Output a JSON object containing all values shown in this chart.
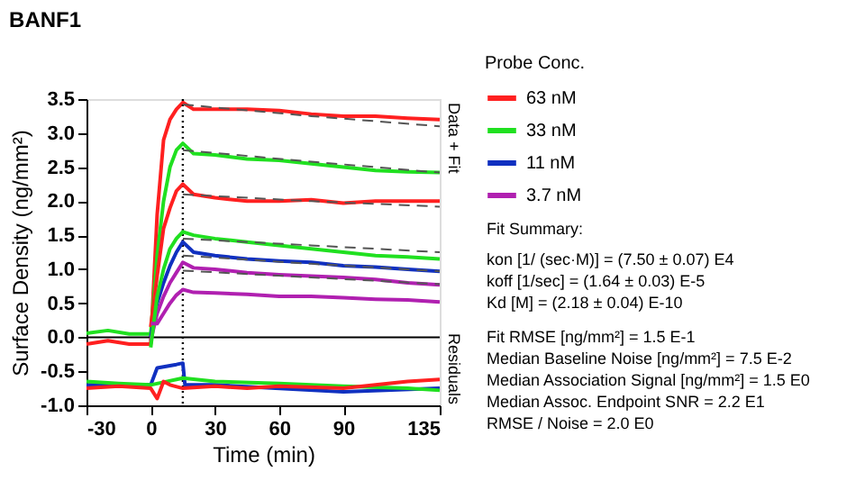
{
  "chart_data": {
    "type": "line",
    "title": "BANF1",
    "xlabel": "Time (min)",
    "ylabel": "Surface Density (ng/mm²)",
    "legend_title": "Probe Conc.",
    "legend": "right",
    "grid": false,
    "marker": "none",
    "line_style": "solid",
    "xlim": [
      -30,
      135
    ],
    "xticks": [
      -30,
      0,
      30,
      60,
      90,
      135
    ],
    "ylim": [
      -1.0,
      3.5
    ],
    "yticks": [
      {
        "value": -1,
        "label": "-1.0"
      },
      -0.5,
      {
        "value": 0,
        "label": "0.0"
      },
      0.5,
      {
        "value": 1,
        "label": "1.0"
      },
      1.5,
      {
        "value": 2,
        "label": "2.0"
      },
      2.5,
      {
        "value": 3,
        "label": "3.0"
      },
      3.5
    ],
    "ref_lines": [
      {
        "axis": "y",
        "value": 0,
        "label": null,
        "color": "#000000",
        "line_style": "solid"
      },
      {
        "axis": "x",
        "value": 15,
        "label": null,
        "color": "#000000",
        "line_style": "dotted"
      }
    ],
    "annotations": [
      "Data + Fit",
      "Residuals",
      "Fit Summary:",
      "kon  [1/ (sec·M)]  =   (7.50 ± 0.07) E4",
      "koff  [1/sec]  =   (1.64 ± 0.03) E-5",
      "Kd  [M]  =   (2.18 ± 0.04) E-10",
      "Fit RMSE [ng/mm²]  =   1.5 E-1",
      "Median Baseline Noise [ng/mm²]  =   7.5 E-2",
      "Median Association Signal [ng/mm²]  =   1.5 E0",
      "Median Assoc. Endpoint SNR  =   2.2 E1",
      "RMSE / Noise  =   2.0 E0"
    ],
    "x": [
      -30,
      -20,
      -10,
      0,
      3,
      6,
      9,
      12,
      15,
      20,
      30,
      45,
      60,
      75,
      90,
      105,
      120,
      135
    ],
    "series": [
      {
        "name": "63 nM",
        "color": "#ff2020",
        "values": [
          -0.1,
          -0.05,
          -0.1,
          -0.1,
          1.8,
          2.9,
          3.2,
          3.35,
          3.45,
          3.35,
          3.35,
          3.35,
          3.33,
          3.28,
          3.25,
          3.25,
          3.22,
          3.2
        ]
      },
      {
        "name": "33 nM",
        "color": "#20e020",
        "values": [
          0.06,
          0.1,
          0.05,
          0.05,
          1.2,
          2.0,
          2.5,
          2.75,
          2.85,
          2.7,
          2.68,
          2.62,
          2.6,
          2.55,
          2.5,
          2.45,
          2.43,
          2.42
        ]
      },
      {
        "name": "11 nM",
        "color": "#1030c0",
        "values": [
          null,
          null,
          null,
          0.0,
          0.5,
          0.8,
          1.05,
          1.25,
          1.4,
          1.25,
          1.2,
          1.15,
          1.12,
          1.1,
          1.05,
          1.03,
          1.0,
          0.97
        ]
      },
      {
        "name": "3.7 nM",
        "color": "#b020b0",
        "values": [
          null,
          null,
          null,
          -0.05,
          0.35,
          0.6,
          0.8,
          0.95,
          1.1,
          1.02,
          1.0,
          0.95,
          0.92,
          0.9,
          0.88,
          0.85,
          0.8,
          0.77
        ]
      },
      {
        "color": "#ff2020",
        "values": [
          null,
          null,
          null,
          0.15,
          0.9,
          1.6,
          1.9,
          2.15,
          2.25,
          2.1,
          2.05,
          2.0,
          2.0,
          2.02,
          1.97,
          2.0,
          2.0,
          2.0
        ]
      },
      {
        "color": "#20e020",
        "values": [
          null,
          null,
          null,
          -0.15,
          0.6,
          1.0,
          1.3,
          1.45,
          1.55,
          1.5,
          1.45,
          1.4,
          1.35,
          1.3,
          1.25,
          1.2,
          1.18,
          1.15
        ]
      },
      {
        "color": "#b020b0",
        "values": [
          null,
          null,
          null,
          0.2,
          0.2,
          0.35,
          0.5,
          0.62,
          0.7,
          0.66,
          0.65,
          0.63,
          0.6,
          0.6,
          0.58,
          0.56,
          0.55,
          0.52
        ]
      },
      {
        "color": "#555555",
        "line_style": "dashed",
        "x": [
          15,
          75,
          135
        ],
        "values": [
          3.42,
          3.25,
          3.1
        ]
      },
      {
        "color": "#555555",
        "line_style": "dashed",
        "x": [
          15,
          75,
          135
        ],
        "values": [
          2.75,
          2.58,
          2.42
        ]
      },
      {
        "color": "#555555",
        "line_style": "dashed",
        "x": [
          15,
          75,
          135
        ],
        "values": [
          2.1,
          2.0,
          1.92
        ]
      },
      {
        "color": "#555555",
        "line_style": "dashed",
        "x": [
          15,
          75,
          135
        ],
        "values": [
          1.45,
          1.35,
          1.25
        ]
      },
      {
        "color": "#555555",
        "line_style": "dashed",
        "x": [
          15,
          75,
          135
        ],
        "values": [
          1.2,
          1.08,
          0.97
        ]
      },
      {
        "color": "#555555",
        "line_style": "dashed",
        "x": [
          15,
          75,
          135
        ],
        "values": [
          0.98,
          0.88,
          0.78
        ]
      },
      {
        "color": "#1030c0",
        "x": [
          -30,
          0,
          3,
          12,
          15,
          16,
          30,
          90,
          135
        ],
        "values": [
          -0.7,
          -0.7,
          -0.45,
          -0.4,
          -0.38,
          -0.7,
          -0.7,
          -0.8,
          -0.75
        ]
      },
      {
        "color": "#20e020",
        "x": [
          -30,
          -15,
          0,
          15,
          30,
          60,
          90,
          120,
          135
        ],
        "values": [
          -0.65,
          -0.68,
          -0.7,
          -0.6,
          -0.65,
          -0.68,
          -0.72,
          -0.75,
          -0.78
        ]
      },
      {
        "color": "#ff2020",
        "x": [
          -30,
          -15,
          0,
          3,
          6,
          9,
          15,
          30,
          45,
          60,
          90,
          105,
          120,
          135
        ],
        "values": [
          -0.75,
          -0.72,
          -0.75,
          -0.9,
          -0.65,
          -0.7,
          -0.75,
          -0.72,
          -0.75,
          -0.72,
          -0.75,
          -0.7,
          -0.65,
          -0.62
        ]
      }
    ]
  }
}
